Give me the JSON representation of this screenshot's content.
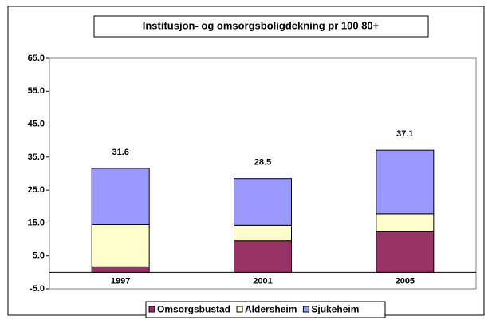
{
  "chart_data": {
    "type": "stacked_bar",
    "title": "Institusjon- og omsorgsboligdekning pr 100 80+",
    "categories": [
      "1997",
      "2001",
      "2005"
    ],
    "series": [
      {
        "name": "Omsorgsbustad",
        "color": "#993366",
        "values": [
          1.7,
          9.6,
          12.4
        ]
      },
      {
        "name": "Aldersheim",
        "color": "#ffffcc",
        "values": [
          12.8,
          4.7,
          5.4
        ]
      },
      {
        "name": "Sjukeheim",
        "color": "#9999ff",
        "values": [
          17.1,
          14.2,
          19.3
        ]
      }
    ],
    "totals": [
      31.6,
      28.5,
      37.1
    ],
    "ylim": [
      -5,
      65
    ],
    "yticks": [
      {
        "value": -5,
        "label": "-5.0"
      },
      {
        "value": 5,
        "label": "5.0"
      },
      {
        "value": 15,
        "label": "15.0"
      },
      {
        "value": 25,
        "label": "25.0"
      },
      {
        "value": 35,
        "label": "35.0"
      },
      {
        "value": 45,
        "label": "45.0"
      },
      {
        "value": 55,
        "label": "55.0"
      },
      {
        "value": 65,
        "label": "65.0"
      }
    ],
    "grid": false,
    "legend": "bottom"
  }
}
